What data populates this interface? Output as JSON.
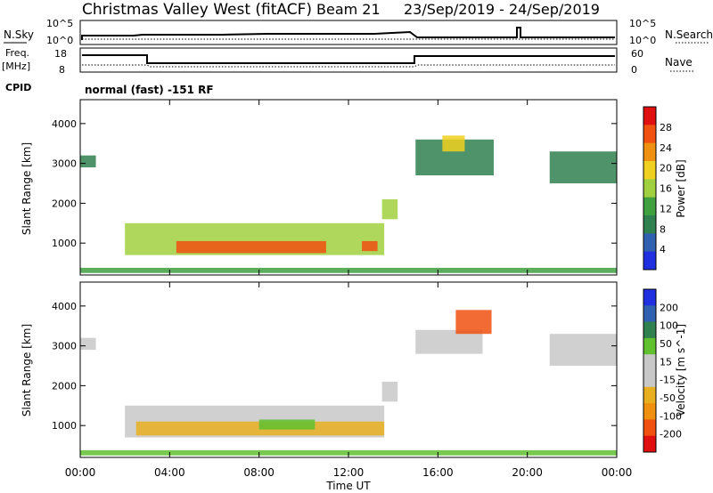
{
  "header": {
    "station": "Christmas Valley West (fitACF)",
    "beam": "Beam 21",
    "dates": "23/Sep/2019 - 24/Sep/2019"
  },
  "top_panels": {
    "nsky_label": "N.Sky",
    "nsky_ticks": [
      "10^5",
      "10^0"
    ],
    "nsearch_label": "N.Search",
    "nsearch_ticks": [
      "10^5",
      "10^0"
    ],
    "freq_label_1": "Freq.",
    "freq_label_2": "[MHz]",
    "freq_ticks": [
      "18",
      "8"
    ],
    "nave_label": "Nave",
    "nave_ticks": [
      "60",
      "0"
    ],
    "cpid_label": "CPID",
    "cpid_text": "normal (fast) -151 RF"
  },
  "colors": {
    "power_scale": [
      "#2030e0",
      "#3060b0",
      "#308050",
      "#40a040",
      "#a0d040",
      "#f0d020",
      "#f09010",
      "#f05010",
      "#e01010"
    ],
    "velocity_scale": [
      "#e01010",
      "#f05010",
      "#f09010",
      "#e8b020",
      "#c8c8c8",
      "#c8c8c8",
      "#60c030",
      "#308050",
      "#3060b0",
      "#2030e0"
    ]
  },
  "chart_data": [
    {
      "type": "heatmap",
      "name": "power",
      "ylabel": "Slant Range [km]",
      "yticks": [
        "4000",
        "3000",
        "2000",
        "1000"
      ],
      "ylim": [
        200,
        4600
      ],
      "xlim": [
        "00:00",
        "24:00"
      ],
      "colorbar_label": "Power [dB]",
      "colorbar_ticks": [
        "28",
        "24",
        "20",
        "16",
        "12",
        "8",
        "4"
      ],
      "color_range": [
        0,
        32
      ],
      "regions": [
        {
          "t0": 0.0,
          "t1": 0.7,
          "r0": 2900,
          "r1": 3200,
          "v": 9
        },
        {
          "t0": 2.0,
          "t1": 13.6,
          "r0": 700,
          "r1": 1500,
          "v": 15
        },
        {
          "t0": 4.3,
          "t1": 11.0,
          "r0": 750,
          "r1": 1050,
          "v": 26
        },
        {
          "t0": 12.6,
          "t1": 13.3,
          "r0": 800,
          "r1": 1050,
          "v": 27
        },
        {
          "t0": 0.0,
          "t1": 24.0,
          "r0": 250,
          "r1": 380,
          "v": 11
        },
        {
          "t0": 13.5,
          "t1": 14.2,
          "r0": 1600,
          "r1": 2100,
          "v": 16
        },
        {
          "t0": 15.0,
          "t1": 18.5,
          "r0": 2700,
          "r1": 3600,
          "v": 9
        },
        {
          "t0": 16.2,
          "t1": 17.2,
          "r0": 3300,
          "r1": 3700,
          "v": 18
        },
        {
          "t0": 21.0,
          "t1": 24.0,
          "r0": 2500,
          "r1": 3300,
          "v": 9
        }
      ]
    },
    {
      "type": "heatmap",
      "name": "velocity",
      "ylabel": "Slant Range [km]",
      "yticks": [
        "4000",
        "3000",
        "2000",
        "1000"
      ],
      "ylim": [
        200,
        4600
      ],
      "xlim": [
        "00:00",
        "24:00"
      ],
      "colorbar_label": "Velocity [m s^-1]",
      "colorbar_ticks": [
        "200",
        "100",
        "50",
        "15",
        "-15",
        "-50",
        "-100",
        "-200"
      ],
      "regions": [
        {
          "t0": 0.0,
          "t1": 0.7,
          "r0": 2900,
          "r1": 3200,
          "v": 0
        },
        {
          "t0": 2.0,
          "t1": 13.6,
          "r0": 700,
          "r1": 1500,
          "v": 0
        },
        {
          "t0": 2.5,
          "t1": 13.6,
          "r0": 750,
          "r1": 1100,
          "v": -40
        },
        {
          "t0": 8.0,
          "t1": 10.5,
          "r0": 900,
          "r1": 1150,
          "v": 25
        },
        {
          "t0": 0.0,
          "t1": 24.0,
          "r0": 250,
          "r1": 380,
          "v": 20
        },
        {
          "t0": 13.5,
          "t1": 14.2,
          "r0": 1600,
          "r1": 2100,
          "v": 0
        },
        {
          "t0": 15.0,
          "t1": 18.0,
          "r0": 2800,
          "r1": 3400,
          "v": 0
        },
        {
          "t0": 16.8,
          "t1": 18.4,
          "r0": 3300,
          "r1": 3900,
          "v": -180
        },
        {
          "t0": 21.0,
          "t1": 24.0,
          "r0": 2500,
          "r1": 3300,
          "v": 0
        }
      ]
    }
  ],
  "xaxis": {
    "ticks": [
      "00:00",
      "04:00",
      "08:00",
      "12:00",
      "16:00",
      "20:00",
      "00:00"
    ],
    "label": "Time UT"
  }
}
